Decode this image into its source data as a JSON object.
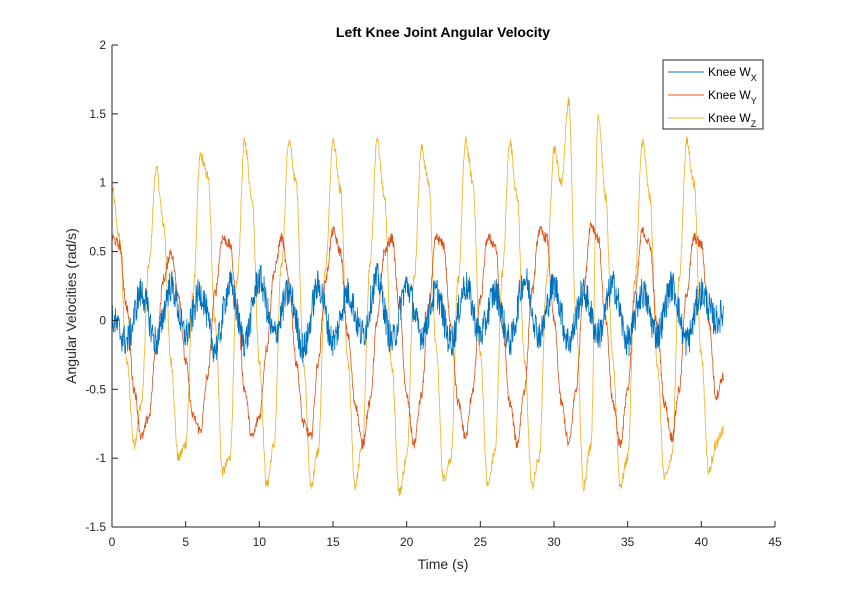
{
  "chart_data": {
    "type": "line",
    "title": "Left Knee Joint Angular Velocity",
    "xlabel": "Time (s)",
    "ylabel": "Angular Velocities (rad/s)",
    "xlim": [
      0,
      45
    ],
    "ylim": [
      -1.5,
      2
    ],
    "xticks": [
      0,
      5,
      10,
      15,
      20,
      25,
      30,
      35,
      40,
      45
    ],
    "yticks": [
      -1.5,
      -1,
      -0.5,
      0,
      0.5,
      1,
      1.5,
      2
    ],
    "xtick_labels": [
      "0",
      "5",
      "10",
      "15",
      "20",
      "25",
      "30",
      "35",
      "40",
      "45"
    ],
    "ytick_labels": [
      "-1.5",
      "-1",
      "-0.5",
      "0",
      "0.5",
      "1",
      "1.5",
      "2"
    ],
    "grid": false,
    "legend_position": "top-right",
    "series": [
      {
        "name": "Knee W_X",
        "legend_base": "Knee W",
        "legend_sub": "X",
        "color": "#0072BD",
        "x": [
          0,
          1,
          2,
          3,
          4,
          5,
          6,
          7,
          8,
          9,
          10,
          11,
          12,
          13,
          14,
          15,
          16,
          17,
          18,
          19,
          20,
          21,
          22,
          23,
          24,
          25,
          26,
          27,
          28,
          29,
          30,
          31,
          32,
          33,
          34,
          35,
          36,
          37,
          38,
          39,
          40,
          41,
          41.5
        ],
        "y": [
          0.0,
          -0.15,
          0.2,
          -0.15,
          0.25,
          -0.1,
          0.2,
          -0.2,
          0.25,
          -0.15,
          0.3,
          -0.1,
          0.2,
          -0.2,
          0.25,
          -0.15,
          0.2,
          -0.1,
          0.3,
          -0.15,
          0.25,
          -0.1,
          0.2,
          -0.15,
          0.25,
          -0.1,
          0.2,
          -0.15,
          0.3,
          -0.1,
          0.25,
          -0.15,
          0.2,
          -0.1,
          0.25,
          -0.15,
          0.2,
          -0.1,
          0.25,
          -0.15,
          0.2,
          0.0,
          0.05
        ]
      },
      {
        "name": "Knee W_Y",
        "legend_base": "Knee W",
        "legend_sub": "Y",
        "color": "#D95319",
        "x": [
          0,
          0.5,
          1,
          1.5,
          2,
          2.5,
          3,
          3.5,
          4,
          4.5,
          5,
          5.5,
          6,
          6.5,
          7,
          7.5,
          8,
          8.5,
          9,
          9.5,
          10,
          10.5,
          11,
          11.5,
          12,
          12.5,
          13,
          13.5,
          14,
          14.5,
          15,
          15.5,
          16,
          16.5,
          17,
          17.5,
          18,
          18.5,
          19,
          19.5,
          20,
          20.5,
          21,
          21.5,
          22,
          22.5,
          23,
          23.5,
          24,
          24.5,
          25,
          25.5,
          26,
          26.5,
          27,
          27.5,
          28,
          28.5,
          29,
          29.5,
          30,
          30.5,
          31,
          31.5,
          32,
          32.5,
          33,
          33.5,
          34,
          34.5,
          35,
          35.5,
          36,
          36.5,
          37,
          37.5,
          38,
          38.5,
          39,
          39.5,
          40,
          40.5,
          41,
          41.5
        ],
        "y": [
          0.6,
          0.55,
          0.1,
          -0.5,
          -0.85,
          -0.7,
          -0.2,
          0.3,
          0.5,
          0.2,
          -0.3,
          -0.7,
          -0.8,
          -0.4,
          0.2,
          0.6,
          0.55,
          0.1,
          -0.5,
          -0.85,
          -0.7,
          -0.2,
          0.35,
          0.6,
          0.3,
          -0.3,
          -0.75,
          -0.85,
          -0.3,
          0.3,
          0.65,
          0.5,
          -0.1,
          -0.6,
          -0.9,
          -0.6,
          0.0,
          0.5,
          0.6,
          0.1,
          -0.55,
          -0.9,
          -0.55,
          0.1,
          0.6,
          0.55,
          -0.05,
          -0.6,
          -0.85,
          -0.5,
          0.15,
          0.6,
          0.55,
          -0.05,
          -0.6,
          -0.9,
          -0.5,
          0.2,
          0.65,
          0.6,
          0.0,
          -0.6,
          -0.9,
          -0.5,
          0.2,
          0.7,
          0.6,
          0.0,
          -0.6,
          -0.9,
          -0.5,
          0.2,
          0.65,
          0.55,
          -0.05,
          -0.6,
          -0.85,
          -0.5,
          0.2,
          0.6,
          0.55,
          0.0,
          -0.55,
          -0.4
        ]
      },
      {
        "name": "Knee W_Z",
        "legend_base": "Knee W",
        "legend_sub": "Z",
        "color": "#EDB120",
        "x": [
          0,
          0.5,
          1,
          1.5,
          2,
          2.5,
          3,
          3.5,
          4,
          4.5,
          5,
          5.5,
          6,
          6.5,
          7,
          7.5,
          8,
          8.5,
          9,
          9.5,
          10,
          10.5,
          11,
          11.5,
          12,
          12.5,
          13,
          13.5,
          14,
          14.5,
          15,
          15.5,
          16,
          16.5,
          17,
          17.5,
          18,
          18.5,
          19,
          19.5,
          20,
          20.5,
          21,
          21.5,
          22,
          22.5,
          23,
          23.5,
          24,
          24.5,
          25,
          25.5,
          26,
          26.5,
          27,
          27.5,
          28,
          28.5,
          29,
          29.5,
          30,
          30.5,
          31,
          31.5,
          32,
          32.5,
          33,
          33.5,
          34,
          34.5,
          35,
          35.5,
          36,
          36.5,
          37,
          37.5,
          38,
          38.5,
          39,
          39.5,
          40,
          40.5,
          41,
          41.5
        ],
        "y": [
          0.95,
          0.6,
          -0.3,
          -0.9,
          -0.6,
          0.4,
          1.1,
          0.7,
          -0.3,
          -1.0,
          -0.9,
          0.2,
          1.2,
          1.05,
          0.0,
          -1.1,
          -1.0,
          0.3,
          1.3,
          0.9,
          -0.3,
          -1.2,
          -0.9,
          0.4,
          1.3,
          1.0,
          -0.3,
          -1.2,
          -0.95,
          0.4,
          1.3,
          0.95,
          -0.3,
          -1.2,
          -0.9,
          0.4,
          1.3,
          0.9,
          -0.35,
          -1.25,
          -1.0,
          0.3,
          1.25,
          1.0,
          -0.2,
          -1.15,
          -1.0,
          0.3,
          1.3,
          1.0,
          -0.25,
          -1.2,
          -0.95,
          0.35,
          1.3,
          0.9,
          -0.3,
          -1.2,
          -1.0,
          0.3,
          1.25,
          1.0,
          1.6,
          0.0,
          -1.2,
          -0.9,
          1.5,
          0.9,
          -0.3,
          -1.2,
          -1.0,
          0.3,
          1.3,
          0.9,
          -0.3,
          -1.15,
          -1.0,
          0.3,
          1.3,
          1.0,
          -0.25,
          -1.1,
          -0.9,
          -0.8
        ]
      }
    ]
  }
}
